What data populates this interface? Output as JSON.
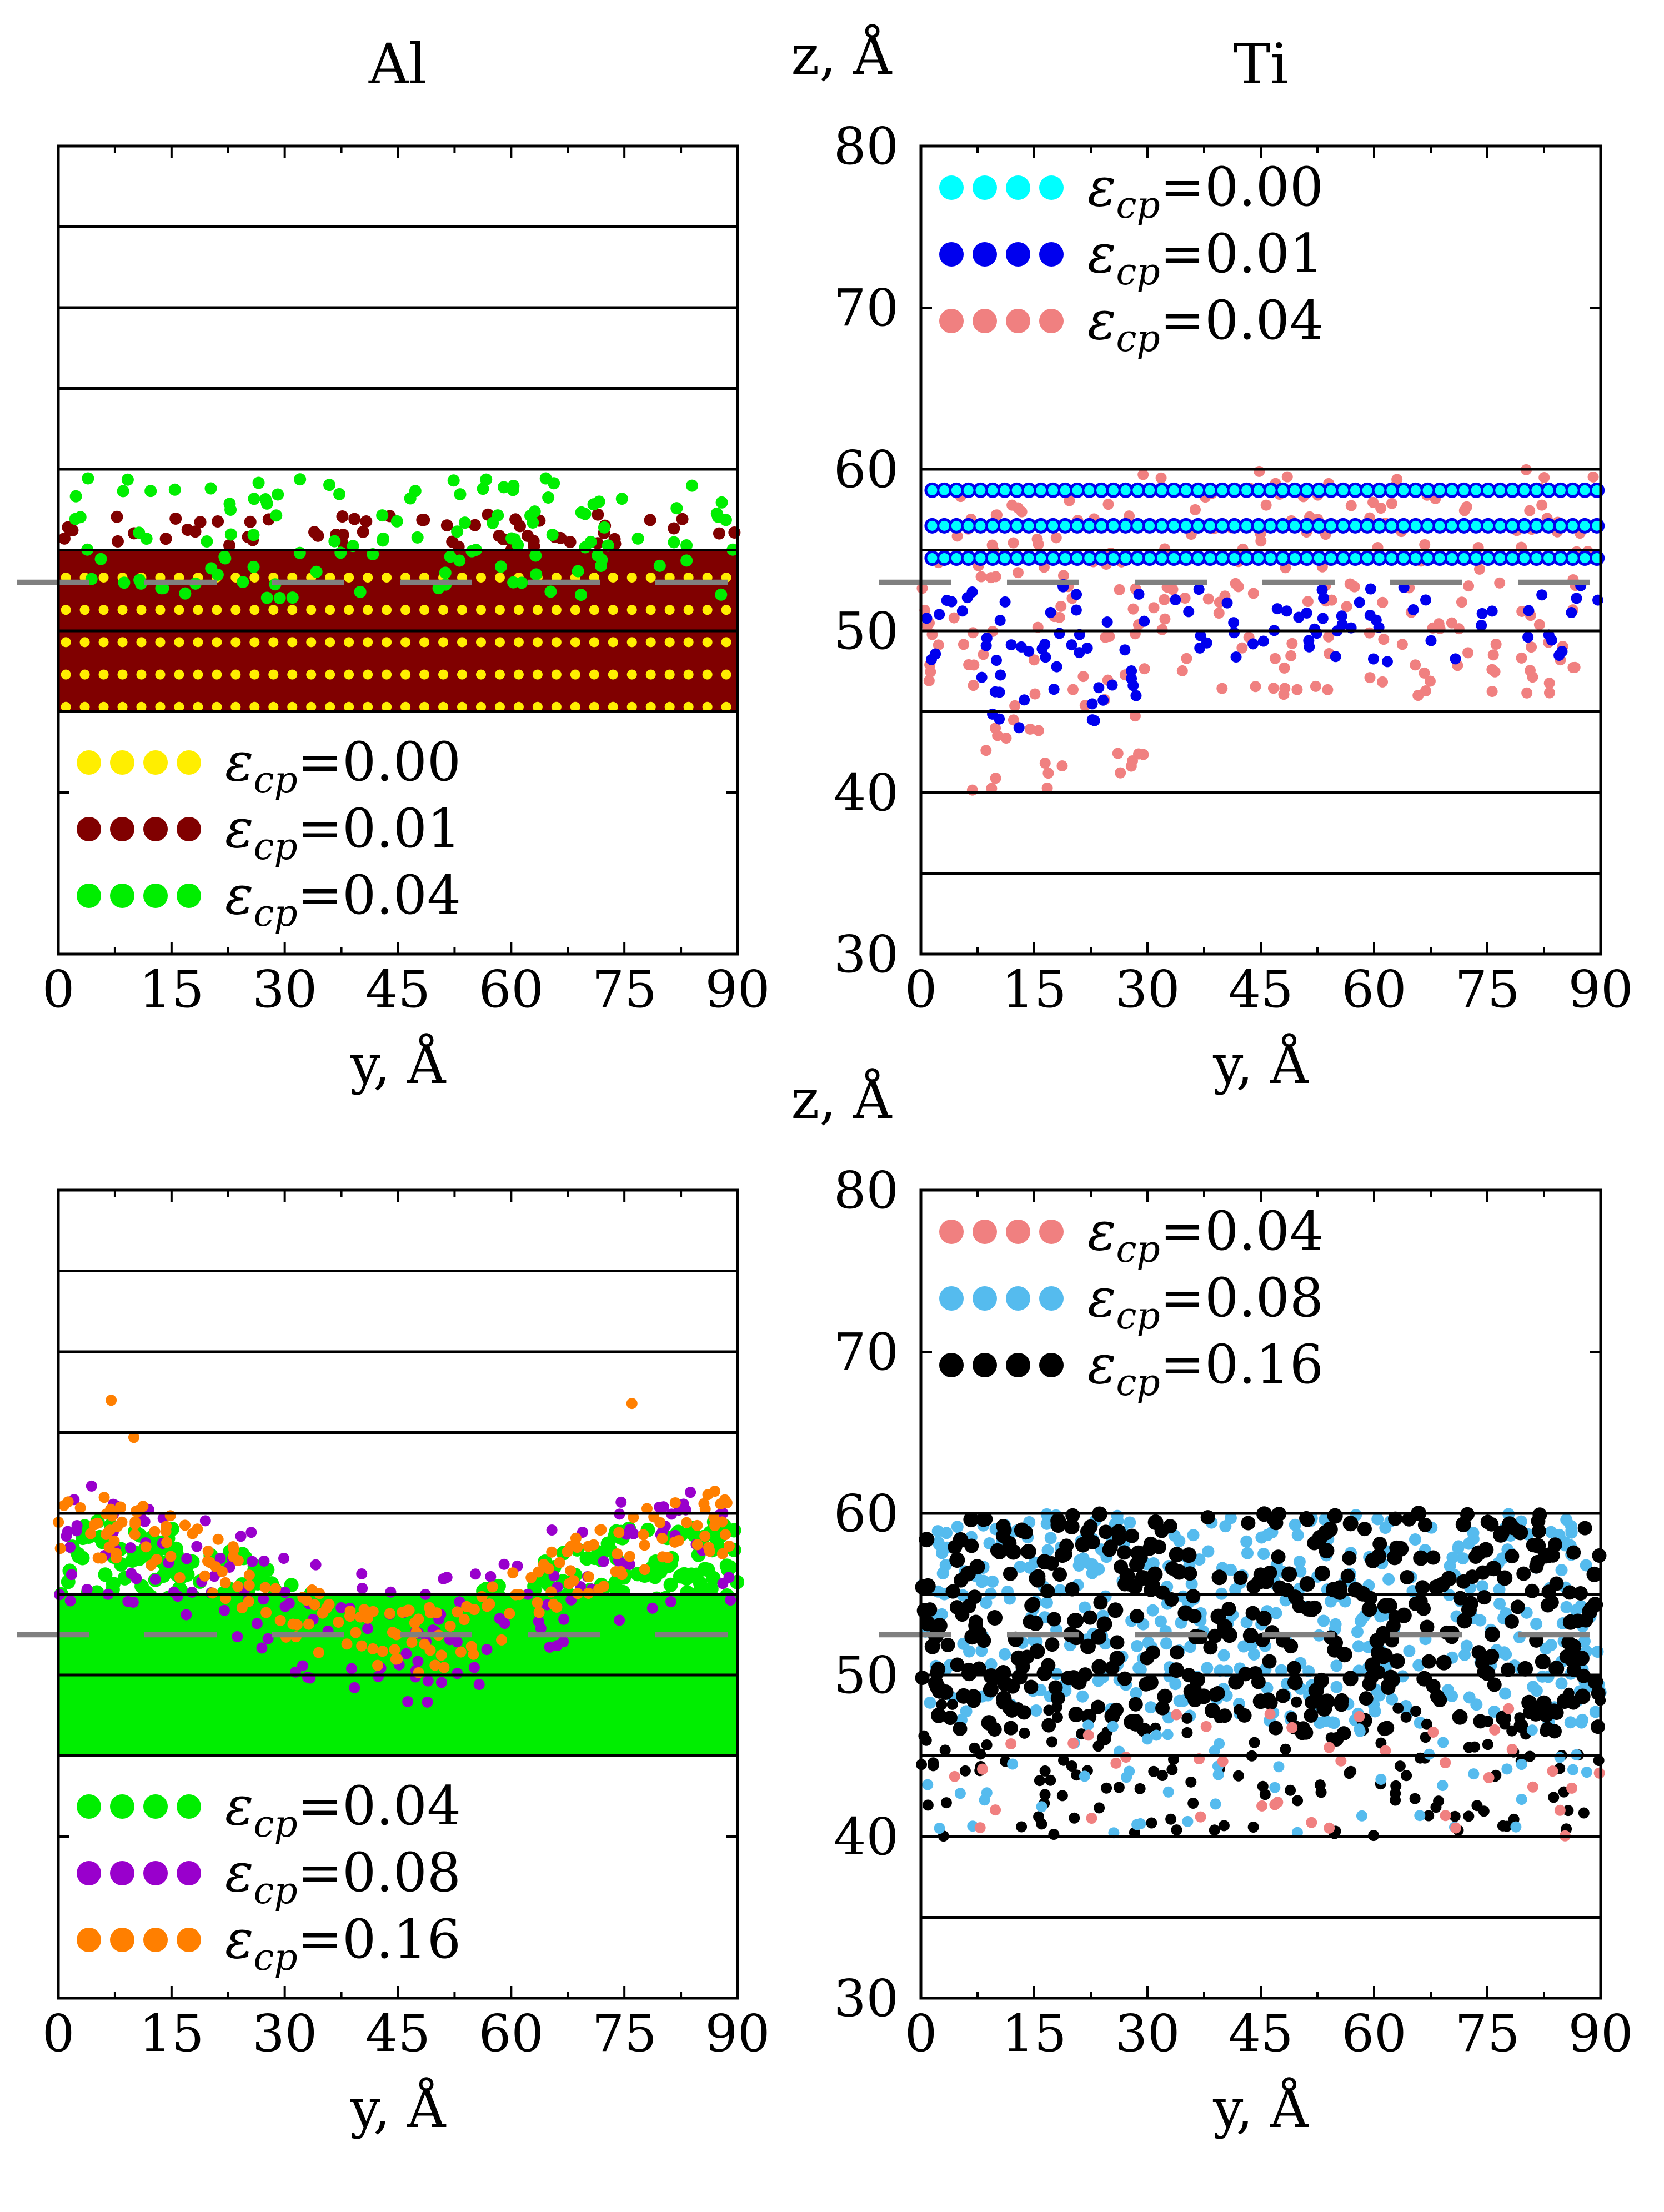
{
  "chart_data": [
    {
      "id": "al_low",
      "type": "scatter",
      "column_title": "Al",
      "xlabel": "y, Å",
      "ylabel": "z, Å",
      "xlim": [
        0,
        90
      ],
      "ylim": [
        30,
        80
      ],
      "xticks": [
        "0",
        "15",
        "30",
        "45",
        "60",
        "75",
        "90"
      ],
      "yticks": [
        "30",
        "40",
        "50",
        "60",
        "70",
        "80"
      ],
      "layer_lines_z": [
        45,
        50,
        55,
        60,
        65,
        70,
        75
      ],
      "filled_region_z": [
        45,
        55
      ],
      "reference_z": 53,
      "legend_position": "bottom-left",
      "series": [
        {
          "name": "ε_cp=0.00",
          "label": "=0.00",
          "color": "#ffee00",
          "description": "ordered lattice rows from z≈45 to z≈55",
          "z_rows": [
            45,
            47,
            49,
            51,
            53
          ]
        },
        {
          "name": "ε_cp=0.01",
          "label": "=0.01",
          "color": "#800000",
          "description": "dense fill z 45–55, scattered atoms up to z≈59",
          "z_rows": [
            46,
            48,
            50,
            52,
            54
          ],
          "scatter_max_z": 59
        },
        {
          "name": "ε_cp=0.04",
          "label": "=0.04",
          "color": "#00ee00",
          "description": "interface roughened, atoms up to z≈60",
          "scatter_max_z": 60
        }
      ]
    },
    {
      "id": "ti_low",
      "type": "scatter",
      "column_title": "Ti",
      "xlabel": "y, Å",
      "ylabel": "z, Å",
      "xlim": [
        0,
        90
      ],
      "ylim": [
        30,
        80
      ],
      "xticks": [
        "0",
        "15",
        "30",
        "45",
        "60",
        "75",
        "90"
      ],
      "yticks": [
        "30",
        "40",
        "50",
        "60",
        "70",
        "80"
      ],
      "layer_lines_z": [
        35,
        40,
        45,
        50,
        55,
        60
      ],
      "reference_z": 53,
      "legend_position": "top-left",
      "series": [
        {
          "name": "ε_cp=0.00",
          "label": "=0.00",
          "color": "#00ffff",
          "description": "ordered lattice rows z≈54.5–59",
          "z_rows": [
            54.5,
            56.5,
            58.7
          ]
        },
        {
          "name": "ε_cp=0.01",
          "label": "=0.01",
          "color": "#0000ee",
          "description": "rows z≈54–59 plus atoms down to z≈44",
          "z_rows": [
            54.5,
            56.5,
            58.7
          ],
          "scatter_min_z": 44
        },
        {
          "name": "ε_cp=0.04",
          "label": "=0.04",
          "color": "#f08080",
          "description": "disordered, atoms down to z≈40",
          "scatter_min_z": 40
        }
      ]
    },
    {
      "id": "al_high",
      "type": "scatter",
      "xlabel": "y, Å",
      "ylabel": "z, Å",
      "xlim": [
        0,
        90
      ],
      "ylim": [
        30,
        80
      ],
      "xticks": [
        "0",
        "15",
        "30",
        "45",
        "60",
        "75",
        "90"
      ],
      "yticks": [
        "30",
        "40",
        "50",
        "60",
        "70",
        "80"
      ],
      "layer_lines_z": [
        45,
        50,
        55,
        60,
        65,
        70,
        75
      ],
      "filled_region_z": [
        45,
        55
      ],
      "reference_z": 52.5,
      "legend_position": "bottom-left",
      "series": [
        {
          "name": "ε_cp=0.04",
          "label": "=0.04",
          "color": "#00ee00",
          "description": "dense fill z 45–55, wavy interface (dip near y≈45)",
          "scatter_max_z": 60
        },
        {
          "name": "ε_cp=0.08",
          "label": "=0.08",
          "color": "#9900cc",
          "description": "interface wave, atoms up to z≈63",
          "scatter_max_z": 63
        },
        {
          "name": "ε_cp=0.16",
          "label": "=0.16",
          "color": "#ff7f00",
          "description": "strongly mixed, atoms up to z≈67",
          "scatter_max_z": 67
        }
      ]
    },
    {
      "id": "ti_high",
      "type": "scatter",
      "xlabel": "y, Å",
      "ylabel": "z, Å",
      "xlim": [
        0,
        90
      ],
      "ylim": [
        30,
        80
      ],
      "xticks": [
        "0",
        "15",
        "30",
        "45",
        "60",
        "75",
        "90"
      ],
      "yticks": [
        "30",
        "40",
        "50",
        "60",
        "70",
        "80"
      ],
      "layer_lines_z": [
        35,
        40,
        45,
        50,
        55,
        60
      ],
      "reference_z": 52.5,
      "legend_position": "top-left",
      "series": [
        {
          "name": "ε_cp=0.04",
          "label": "=0.04",
          "color": "#f08080",
          "description": "tilted rows z 48–60, atoms down to z≈40",
          "scatter_min_z": 40
        },
        {
          "name": "ε_cp=0.08",
          "label": "=0.08",
          "color": "#55bbee",
          "description": "dense band z 47–60, atoms down to z≈40",
          "scatter_min_z": 40
        },
        {
          "name": "ε_cp=0.16",
          "label": "=0.16",
          "color": "#000000",
          "description": "dense band, atoms down to z≈40",
          "scatter_min_z": 40
        }
      ]
    }
  ]
}
